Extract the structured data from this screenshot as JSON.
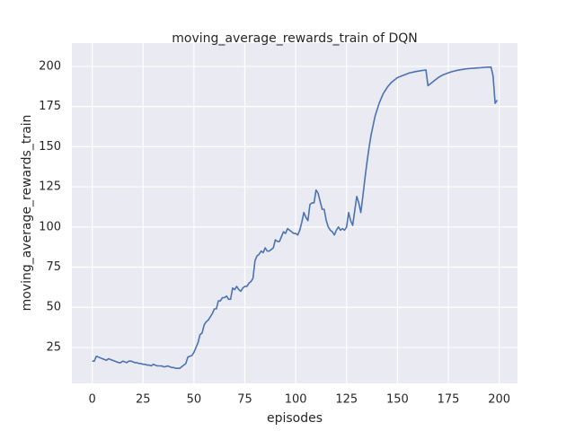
{
  "chart_data": {
    "type": "line",
    "title": "moving_average_rewards_train of DQN",
    "x_label": "episodes",
    "y_label": "moving_average_rewards_train",
    "color": "#4c72b0",
    "grid": true,
    "x": [
      0,
      1,
      2,
      3,
      4,
      5,
      6,
      7,
      8,
      9,
      10,
      11,
      12,
      13,
      14,
      15,
      16,
      17,
      18,
      19,
      20,
      21,
      22,
      23,
      24,
      25,
      26,
      27,
      28,
      29,
      30,
      31,
      32,
      33,
      34,
      35,
      36,
      37,
      38,
      39,
      40,
      41,
      42,
      43,
      44,
      45,
      46,
      47,
      48,
      49,
      50,
      51,
      52,
      53,
      54,
      55,
      56,
      57,
      58,
      59,
      60,
      61,
      62,
      63,
      64,
      65,
      66,
      67,
      68,
      69,
      70,
      71,
      72,
      73,
      74,
      75,
      76,
      77,
      78,
      79,
      80,
      81,
      82,
      83,
      84,
      85,
      86,
      87,
      88,
      89,
      90,
      91,
      92,
      93,
      94,
      95,
      96,
      97,
      98,
      99,
      100,
      101,
      102,
      103,
      104,
      105,
      106,
      107,
      108,
      109,
      110,
      111,
      112,
      113,
      114,
      115,
      116,
      117,
      118,
      119,
      120,
      121,
      122,
      123,
      124,
      125,
      126,
      127,
      128,
      129,
      130,
      131,
      132,
      133,
      134,
      135,
      136,
      137,
      138,
      139,
      140,
      141,
      142,
      143,
      144,
      145,
      146,
      147,
      148,
      149,
      150,
      151,
      152,
      153,
      154,
      155,
      156,
      157,
      158,
      159,
      160,
      161,
      162,
      163,
      164,
      165,
      166,
      167,
      168,
      169,
      170,
      171,
      172,
      173,
      174,
      175,
      176,
      177,
      178,
      179,
      180,
      181,
      182,
      183,
      184,
      185,
      186,
      187,
      188,
      189,
      190,
      191,
      192,
      193,
      194,
      195,
      196,
      197,
      198,
      199
    ],
    "values": [
      16.5,
      16.5,
      19.5,
      19,
      18.5,
      18,
      17.5,
      17,
      18,
      17.5,
      17,
      16.5,
      16,
      15.5,
      15.5,
      16.5,
      16,
      15.5,
      16.5,
      16.5,
      16,
      15.5,
      15.5,
      15,
      15,
      14.5,
      14.5,
      14,
      14,
      13.5,
      14.5,
      14,
      13.5,
      13.5,
      13.5,
      13,
      13,
      13.5,
      13,
      12.5,
      12.5,
      12,
      12,
      12,
      13,
      14,
      15,
      19,
      19.5,
      20,
      22,
      25,
      28,
      33,
      34,
      39,
      41,
      42,
      44,
      46,
      49,
      49,
      54,
      54,
      56,
      56,
      57,
      55,
      55,
      62,
      61,
      63,
      61,
      60,
      62,
      63,
      63,
      65,
      66,
      68,
      79,
      82,
      83,
      85,
      84,
      87,
      85,
      85,
      86,
      87,
      92,
      91,
      91,
      94,
      97,
      96,
      99,
      98,
      97,
      96,
      96,
      95,
      98,
      103,
      109,
      106,
      104,
      114,
      115,
      115,
      123,
      121,
      116,
      111,
      111,
      104,
      100,
      98,
      97,
      95,
      98,
      100,
      98,
      99,
      98,
      100,
      109,
      104,
      101,
      110,
      119,
      115,
      109,
      119,
      130,
      140,
      149,
      157,
      163,
      169,
      173,
      177,
      180,
      183,
      185,
      187,
      188.5,
      190,
      191,
      192,
      193,
      193.5,
      194,
      194.5,
      195,
      195.5,
      196,
      196.2,
      196.5,
      196.8,
      197,
      197.2,
      197.4,
      197.6,
      197.8,
      188,
      189,
      190,
      191,
      192,
      193,
      193.8,
      194.5,
      195,
      195.5,
      196,
      196.4,
      196.8,
      197.1,
      197.4,
      197.7,
      197.9,
      198.1,
      198.3,
      198.5,
      198.6,
      198.7,
      198.8,
      198.9,
      199,
      199.1,
      199.2,
      199.3,
      199.4,
      199.5,
      199.5,
      199.6,
      194,
      177,
      179
    ],
    "xlim": [
      -10,
      209
    ],
    "ylim": [
      2.6,
      214.5
    ],
    "xticks": [
      0,
      25,
      50,
      75,
      100,
      125,
      150,
      175,
      200
    ],
    "yticks": [
      25,
      50,
      75,
      100,
      125,
      150,
      175,
      200
    ]
  }
}
